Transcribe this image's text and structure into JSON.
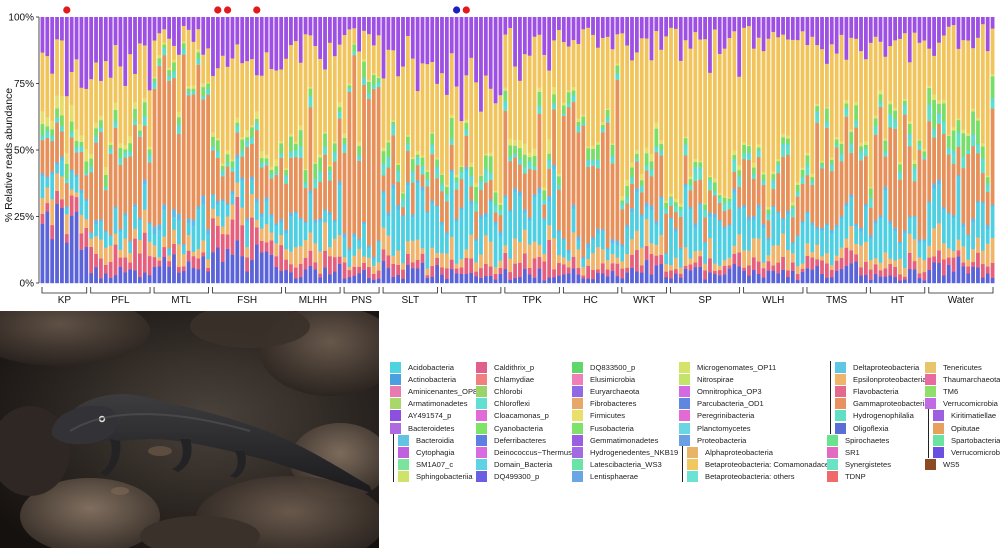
{
  "chart_data": {
    "type": "bar",
    "stacked": true,
    "ylabel": "% Relative reads abundance",
    "yticks": [
      "0%",
      "25%",
      "50%",
      "75%",
      "100%"
    ],
    "ylim": [
      0,
      100
    ],
    "groups": [
      {
        "name": "KP",
        "n": 10
      },
      {
        "name": "PFL",
        "n": 13
      },
      {
        "name": "MTL",
        "n": 12
      },
      {
        "name": "FSH",
        "n": 15
      },
      {
        "name": "MLHH",
        "n": 12
      },
      {
        "name": "PNS",
        "n": 8
      },
      {
        "name": "SLT",
        "n": 12
      },
      {
        "name": "TT",
        "n": 13
      },
      {
        "name": "TPK",
        "n": 12
      },
      {
        "name": "HC",
        "n": 12
      },
      {
        "name": "WKT",
        "n": 10
      },
      {
        "name": "SP",
        "n": 15
      },
      {
        "name": "WLH",
        "n": 13
      },
      {
        "name": "TMS",
        "n": 13
      },
      {
        "name": "HT",
        "n": 12
      },
      {
        "name": "Water",
        "n": 14
      }
    ],
    "marker_dots": [
      {
        "group": "KP",
        "sample": 5,
        "color": "#e31a1c"
      },
      {
        "group": "FSH",
        "sample": 1,
        "color": "#e31a1c"
      },
      {
        "group": "FSH",
        "sample": 3,
        "color": "#e31a1c"
      },
      {
        "group": "FSH",
        "sample": 9,
        "color": "#e31a1c"
      },
      {
        "group": "TT",
        "sample": 3,
        "color": "#1f1fbf"
      },
      {
        "group": "TT",
        "sample": 5,
        "color": "#e31a1c"
      }
    ],
    "legend_columns": [
      [
        {
          "label": "Acidobacteria",
          "color": "#4fd3e0"
        },
        {
          "label": "Actinobacteria",
          "color": "#4a9fe0"
        },
        {
          "label": "Aminicenantes_OP8",
          "color": "#e87ab0"
        },
        {
          "label": "Armatimonadetes",
          "color": "#a8d86a"
        },
        {
          "label": "AY491574_p",
          "color": "#8c4fe0"
        },
        {
          "label": "Bacteroidetes",
          "color": "#b06ae0"
        },
        {
          "label": "Bacteroidia",
          "color": "#63c3e3",
          "indent": true
        },
        {
          "label": "Cytophagia",
          "color": "#c05fe0",
          "indent": true
        },
        {
          "label": "SM1A07_c",
          "color": "#7be39e",
          "indent": true
        },
        {
          "label": "Sphingobacteriia",
          "color": "#cfe36a",
          "indent": true
        }
      ],
      [
        {
          "label": "Caldithrix_p",
          "color": "#e05f8c"
        },
        {
          "label": "Chlamydiae",
          "color": "#f07f7f"
        },
        {
          "label": "Chlorobi",
          "color": "#9ad36a"
        },
        {
          "label": "Chloroflexi",
          "color": "#5fe0d3"
        },
        {
          "label": "Cloacamonas_p",
          "color": "#e26ad8"
        },
        {
          "label": "Cyanobacteria",
          "color": "#7fe36a"
        },
        {
          "label": "Deferribacteres",
          "color": "#5f7fe0"
        },
        {
          "label": "Deinococcus−Thermus",
          "color": "#d96ae0"
        },
        {
          "label": "Domain_Bacteria",
          "color": "#5fd3e3"
        },
        {
          "label": "DQ499300_p",
          "color": "#6a5fe3"
        }
      ],
      [
        {
          "label": "DQ833500_p",
          "color": "#5fd76a"
        },
        {
          "label": "Elusimicrobia",
          "color": "#f07fb8"
        },
        {
          "label": "Euryarchaeota",
          "color": "#8f6ae3"
        },
        {
          "label": "Fibrobacteres",
          "color": "#e8a86a"
        },
        {
          "label": "Firmicutes",
          "color": "#e8e06a"
        },
        {
          "label": "Fusobacteria",
          "color": "#7fe36a"
        },
        {
          "label": "Gemmatimonadetes",
          "color": "#9a5fe0"
        },
        {
          "label": "Hydrogenedentes_NKB19",
          "color": "#a26ae3"
        },
        {
          "label": "Latescibacteria_WS3",
          "color": "#6ae3a6"
        },
        {
          "label": "Lentisphaerae",
          "color": "#6aa6e3"
        }
      ],
      [
        {
          "label": "Microgenomates_OP11",
          "color": "#d6e36a"
        },
        {
          "label": "Nitrospirae",
          "color": "#c4e36a"
        },
        {
          "label": "Omnitrophica_OP3",
          "color": "#d36ae3"
        },
        {
          "label": "Parcubacteria_OD1",
          "color": "#5f86e0"
        },
        {
          "label": "Peregrinibacteria",
          "color": "#e36ad3"
        },
        {
          "label": "Planctomycetes",
          "color": "#6ad6e3"
        },
        {
          "label": "Proteobacteria",
          "color": "#6a9fe3"
        },
        {
          "label": "Alphaproteobacteria",
          "color": "#e8b46a",
          "indent": true
        },
        {
          "label": "Betaproteobacteria: Comamonadaceae",
          "color": "#f0c85f",
          "indent": true
        },
        {
          "label": "Betaproteobacteria: others",
          "color": "#6ae3d3",
          "indent": true
        }
      ],
      [
        {
          "label": "Deltaproteobacteria",
          "color": "#5fc6e3",
          "indent": true
        },
        {
          "label": "Epsilonproteobacteria",
          "color": "#f0b46a",
          "indent": true
        },
        {
          "label": "Flavobacteria",
          "color": "#e36a8c",
          "indent": true
        },
        {
          "label": "Gammaproteobacteria",
          "color": "#e8935f",
          "indent": true
        },
        {
          "label": "Hydrogenophilalia",
          "color": "#5fe0c4",
          "indent": true
        },
        {
          "label": "Oligoflexia",
          "color": "#5a6fd6",
          "indent": true
        },
        {
          "label": "Spirochaetes",
          "color": "#6ae38f"
        },
        {
          "label": "SR1",
          "color": "#e36ac0"
        },
        {
          "label": "Synergistetes",
          "color": "#6ae3c4"
        },
        {
          "label": "TDNP",
          "color": "#ef6a6a"
        }
      ],
      [
        {
          "label": "Tenericutes",
          "color": "#e8c46a"
        },
        {
          "label": "Thaumarchaeota",
          "color": "#e86aa0"
        },
        {
          "label": "TM6",
          "color": "#8fe06a"
        },
        {
          "label": "Verrucomicrobia",
          "color": "#c06ae3"
        },
        {
          "label": "Kiritimatiellae",
          "color": "#9c5fe0",
          "indent": true
        },
        {
          "label": "Opitutae",
          "color": "#e8a05f",
          "indent": true
        },
        {
          "label": "Spartobacteria",
          "color": "#6ae3a0",
          "indent": true
        },
        {
          "label": "Verrucomicrobiae",
          "color": "#6a4fe0",
          "indent": true
        },
        {
          "label": "WS5",
          "color": "#8b4a22"
        }
      ]
    ],
    "palette": {
      "verruco": "#9d50e3",
      "beta_com": "#f2c55c",
      "gamma": "#e8905a",
      "beta_oth": "#5ed8d8",
      "alpha": "#f1b46b",
      "firmicutes": "#e6de68",
      "oligo": "#5b63d8",
      "flavo": "#e6607e",
      "cyan": "#78de6a",
      "acido": "#4fd0e2",
      "bacteroidia": "#60b8e8",
      "chloro": "#5fe0c8"
    }
  },
  "photo": {
    "subject": "salamander-photo"
  }
}
